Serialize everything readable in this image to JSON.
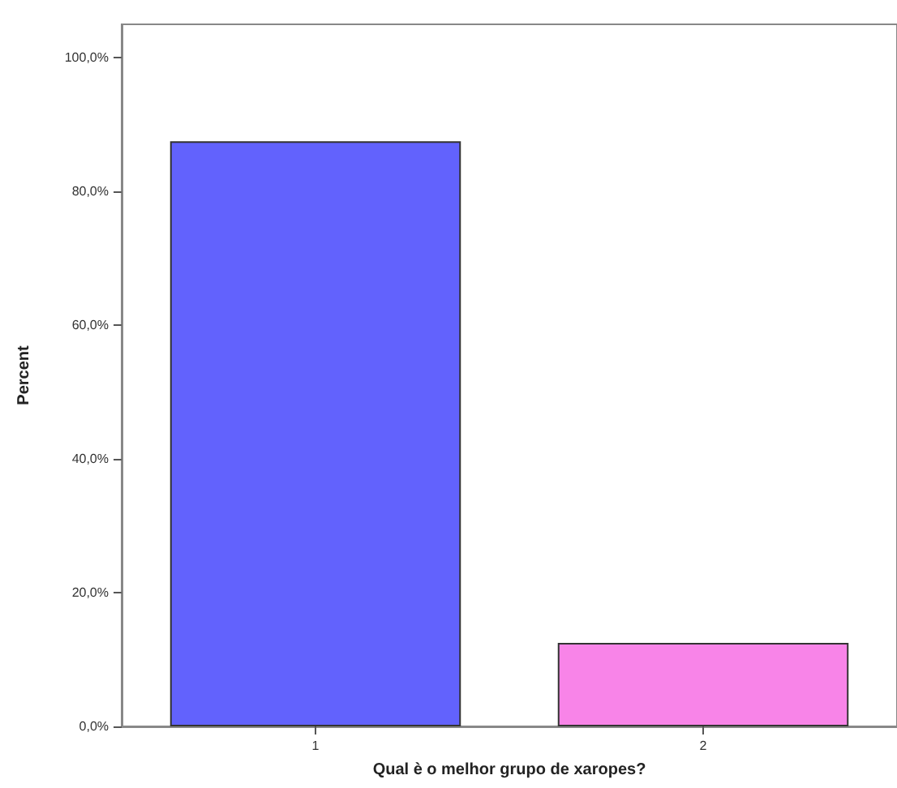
{
  "chart_data": {
    "type": "bar",
    "xlabel": "Qual è o melhor grupo de xaropes?",
    "ylabel": "Percent",
    "categories": [
      "1",
      "2"
    ],
    "values": [
      87.5,
      12.5
    ],
    "colors": [
      "#6262fd",
      "#f884e8"
    ],
    "ylim": [
      0,
      105
    ],
    "yticks": [
      {
        "value": 0,
        "label": "0,0%"
      },
      {
        "value": 20,
        "label": "20,0%"
      },
      {
        "value": 40,
        "label": "40,0%"
      },
      {
        "value": 60,
        "label": "60,0%"
      },
      {
        "value": 80,
        "label": "80,0%"
      },
      {
        "value": 100,
        "label": "100,0%"
      }
    ],
    "grid": false
  }
}
